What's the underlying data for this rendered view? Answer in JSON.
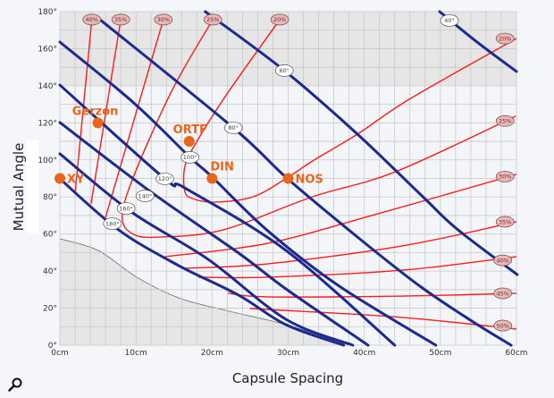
{
  "chart_data": {
    "type": "line",
    "xlabel": "Capsule Spacing",
    "ylabel": "Mutual Angle",
    "xlim": [
      0,
      60
    ],
    "ylim": [
      0,
      180
    ],
    "x_ticks": [
      "0cm",
      "10cm",
      "20cm",
      "30cm",
      "40cm",
      "50cm",
      "60cm"
    ],
    "y_ticks": [
      "0°",
      "20°",
      "40°",
      "60°",
      "80°",
      "100°",
      "120°",
      "140°",
      "160°",
      "180°"
    ],
    "grid": true,
    "colors": {
      "angle_lines": "#1b2a8c",
      "percent_lines": "#ff1a1a",
      "points": "#e8661c",
      "shade": "#e6e6e6",
      "background": "#f3f5f9",
      "grid": "#c9c9cc"
    },
    "shaded_top_band": [
      140,
      180
    ],
    "shaded_lower_boundary": [
      [
        0,
        57.4
      ],
      [
        5,
        51.2
      ],
      [
        10.1,
        36.7
      ],
      [
        15.6,
        25.6
      ],
      [
        21.8,
        18.8
      ],
      [
        29.7,
        11.1
      ],
      [
        38.1,
        0
      ]
    ],
    "angle_lines": [
      {
        "label": "40°",
        "label_at": [
          51.2,
          175.2
        ],
        "points": [
          [
            49.9,
            180
          ],
          [
            55,
            163
          ],
          [
            60,
            147.7
          ]
        ]
      },
      {
        "label": "60°",
        "label_at": [
          29.5,
          148.2
        ],
        "points": [
          [
            19.1,
            180
          ],
          [
            29.5,
            148.2
          ],
          [
            39.1,
            113.9
          ],
          [
            47.7,
            80.1
          ],
          [
            52.3,
            62.3
          ],
          [
            60.1,
            38.1
          ]
        ]
      },
      {
        "label": "80°",
        "label_at": [
          22.8,
          117.3
        ],
        "points": [
          [
            5,
            176.6
          ],
          [
            22.8,
            117.3
          ],
          [
            29.8,
            90.3
          ],
          [
            39.1,
            58.4
          ],
          [
            47.3,
            31.9
          ],
          [
            54.3,
            12.6
          ],
          [
            59.3,
            0
          ]
        ]
      },
      {
        "label": "100°",
        "label_at": [
          17.1,
          101.4
        ],
        "points": [
          [
            0,
            163.6
          ],
          [
            9.7,
            130.8
          ],
          [
            17.1,
            101.4
          ],
          [
            20,
            90.8
          ],
          [
            27.3,
            61.8
          ],
          [
            36.7,
            31.9
          ],
          [
            49.4,
            0
          ]
        ]
      },
      {
        "label": "120°",
        "label_at": [
          13.8,
          89.8
        ],
        "points": [
          [
            0,
            140.4
          ],
          [
            13.8,
            89.8
          ],
          [
            16.4,
            84.9
          ],
          [
            29.7,
            51.2
          ],
          [
            44,
            0
          ]
        ]
      },
      {
        "label": "140°",
        "label_at": [
          11.2,
          80.6
        ],
        "points": [
          [
            0,
            120.2
          ],
          [
            11.7,
            83.5
          ],
          [
            23.5,
            49.7
          ],
          [
            29.7,
            30.4
          ],
          [
            40.5,
            0
          ]
        ]
      },
      {
        "label": "160°",
        "label_at": [
          8.7,
          73.8
        ],
        "points": [
          [
            0,
            103.3
          ],
          [
            9.4,
            71.9
          ],
          [
            19.5,
            46.3
          ],
          [
            29.7,
            14
          ],
          [
            38.5,
            0
          ]
        ]
      },
      {
        "label": "180°",
        "label_at": [
          6.9,
          65.6
        ],
        "points": [
          [
            0,
            89.8
          ],
          [
            7.7,
            62.3
          ],
          [
            15.6,
            43
          ],
          [
            23.5,
            27
          ],
          [
            29.7,
            11.1
          ],
          [
            37.3,
            0
          ]
        ]
      }
    ],
    "percent_lines": [
      {
        "label": "20%",
        "label_at": [
          [
            28.9,
            175.7
          ],
          [
            58.5,
            165.5
          ]
        ],
        "points": [
          [
            28.9,
            175.7
          ],
          [
            22.3,
            137.6
          ],
          [
            18.5,
            113.4
          ],
          [
            16.5,
            97.5
          ],
          [
            16.4,
            83.5
          ],
          [
            17.4,
            79.2
          ],
          [
            20.3,
            77.2
          ],
          [
            25.4,
            80.1
          ],
          [
            30,
            90.7
          ],
          [
            33.2,
            99.4
          ],
          [
            39.1,
            113.9
          ],
          [
            46.1,
            133.2
          ],
          [
            60,
            165.5
          ]
        ]
      },
      {
        "label": "25%",
        "label_at": [
          [
            20.1,
            175.7
          ],
          [
            58.5,
            121
          ]
        ],
        "points": [
          [
            20.1,
            175.7
          ],
          [
            14.8,
            138
          ],
          [
            9.7,
            91.2
          ],
          [
            8.2,
            69
          ],
          [
            9.7,
            59.8
          ],
          [
            13.3,
            58.4
          ],
          [
            21.5,
            62.3
          ],
          [
            33.2,
            80.1
          ],
          [
            44.1,
            93.6
          ],
          [
            59.9,
            123.6
          ]
        ]
      },
      {
        "label": "30%",
        "label_at": [
          [
            13.6,
            175.7
          ]
        ],
        "points": [
          [
            13.6,
            175.7
          ],
          [
            6,
            69
          ]
        ]
      },
      {
        "label": "30%",
        "label_at": [
          [
            58.5,
            91
          ]
        ],
        "points": [
          [
            13.8,
            47.8
          ],
          [
            27.3,
            55
          ],
          [
            41.4,
            70.5
          ],
          [
            60,
            92.2
          ]
        ]
      },
      {
        "label": "35%",
        "label_at": [
          [
            8,
            175.7
          ]
        ],
        "points": [
          [
            8,
            175.7
          ],
          [
            4.1,
            76.3
          ]
        ]
      },
      {
        "label": "35%",
        "label_at": [
          [
            58.5,
            66.6
          ]
        ],
        "points": [
          [
            16.2,
            41.5
          ],
          [
            27.3,
            43.9
          ],
          [
            45,
            53.6
          ],
          [
            60,
            66.6
          ]
        ]
      },
      {
        "label": "40%",
        "label_at": [
          [
            4.2,
            175.7
          ]
        ],
        "points": [
          [
            4.2,
            175.7
          ],
          [
            2,
            82
          ]
        ]
      },
      {
        "label": "40%",
        "label_at": [
          [
            58.2,
            45.8
          ]
        ],
        "points": [
          [
            18.2,
            36.7
          ],
          [
            27.3,
            36.7
          ],
          [
            45,
            40.5
          ],
          [
            60,
            47.8
          ]
        ]
      },
      {
        "label": "45%",
        "label_at": [
          [
            58.2,
            28
          ]
        ],
        "points": [
          [
            22.1,
            28
          ],
          [
            27.3,
            26.1
          ],
          [
            45,
            26.5
          ],
          [
            60,
            28
          ]
        ]
      },
      {
        "label": "50%",
        "label_at": [
          [
            58.2,
            10.6
          ]
        ],
        "points": [
          [
            25,
            19.8
          ],
          [
            27.3,
            19.3
          ],
          [
            45,
            15
          ],
          [
            60,
            8.7
          ]
        ]
      }
    ],
    "points": [
      {
        "name": "XY",
        "x": 0,
        "y": 90
      },
      {
        "name": "Gerzon",
        "x": 5,
        "y": 120
      },
      {
        "name": "ORTF",
        "x": 17,
        "y": 110
      },
      {
        "name": "DIN",
        "x": 20,
        "y": 90
      },
      {
        "name": "NOS",
        "x": 30,
        "y": 90
      }
    ]
  },
  "ui": {
    "zoom_icon": "magnifier-icon"
  }
}
